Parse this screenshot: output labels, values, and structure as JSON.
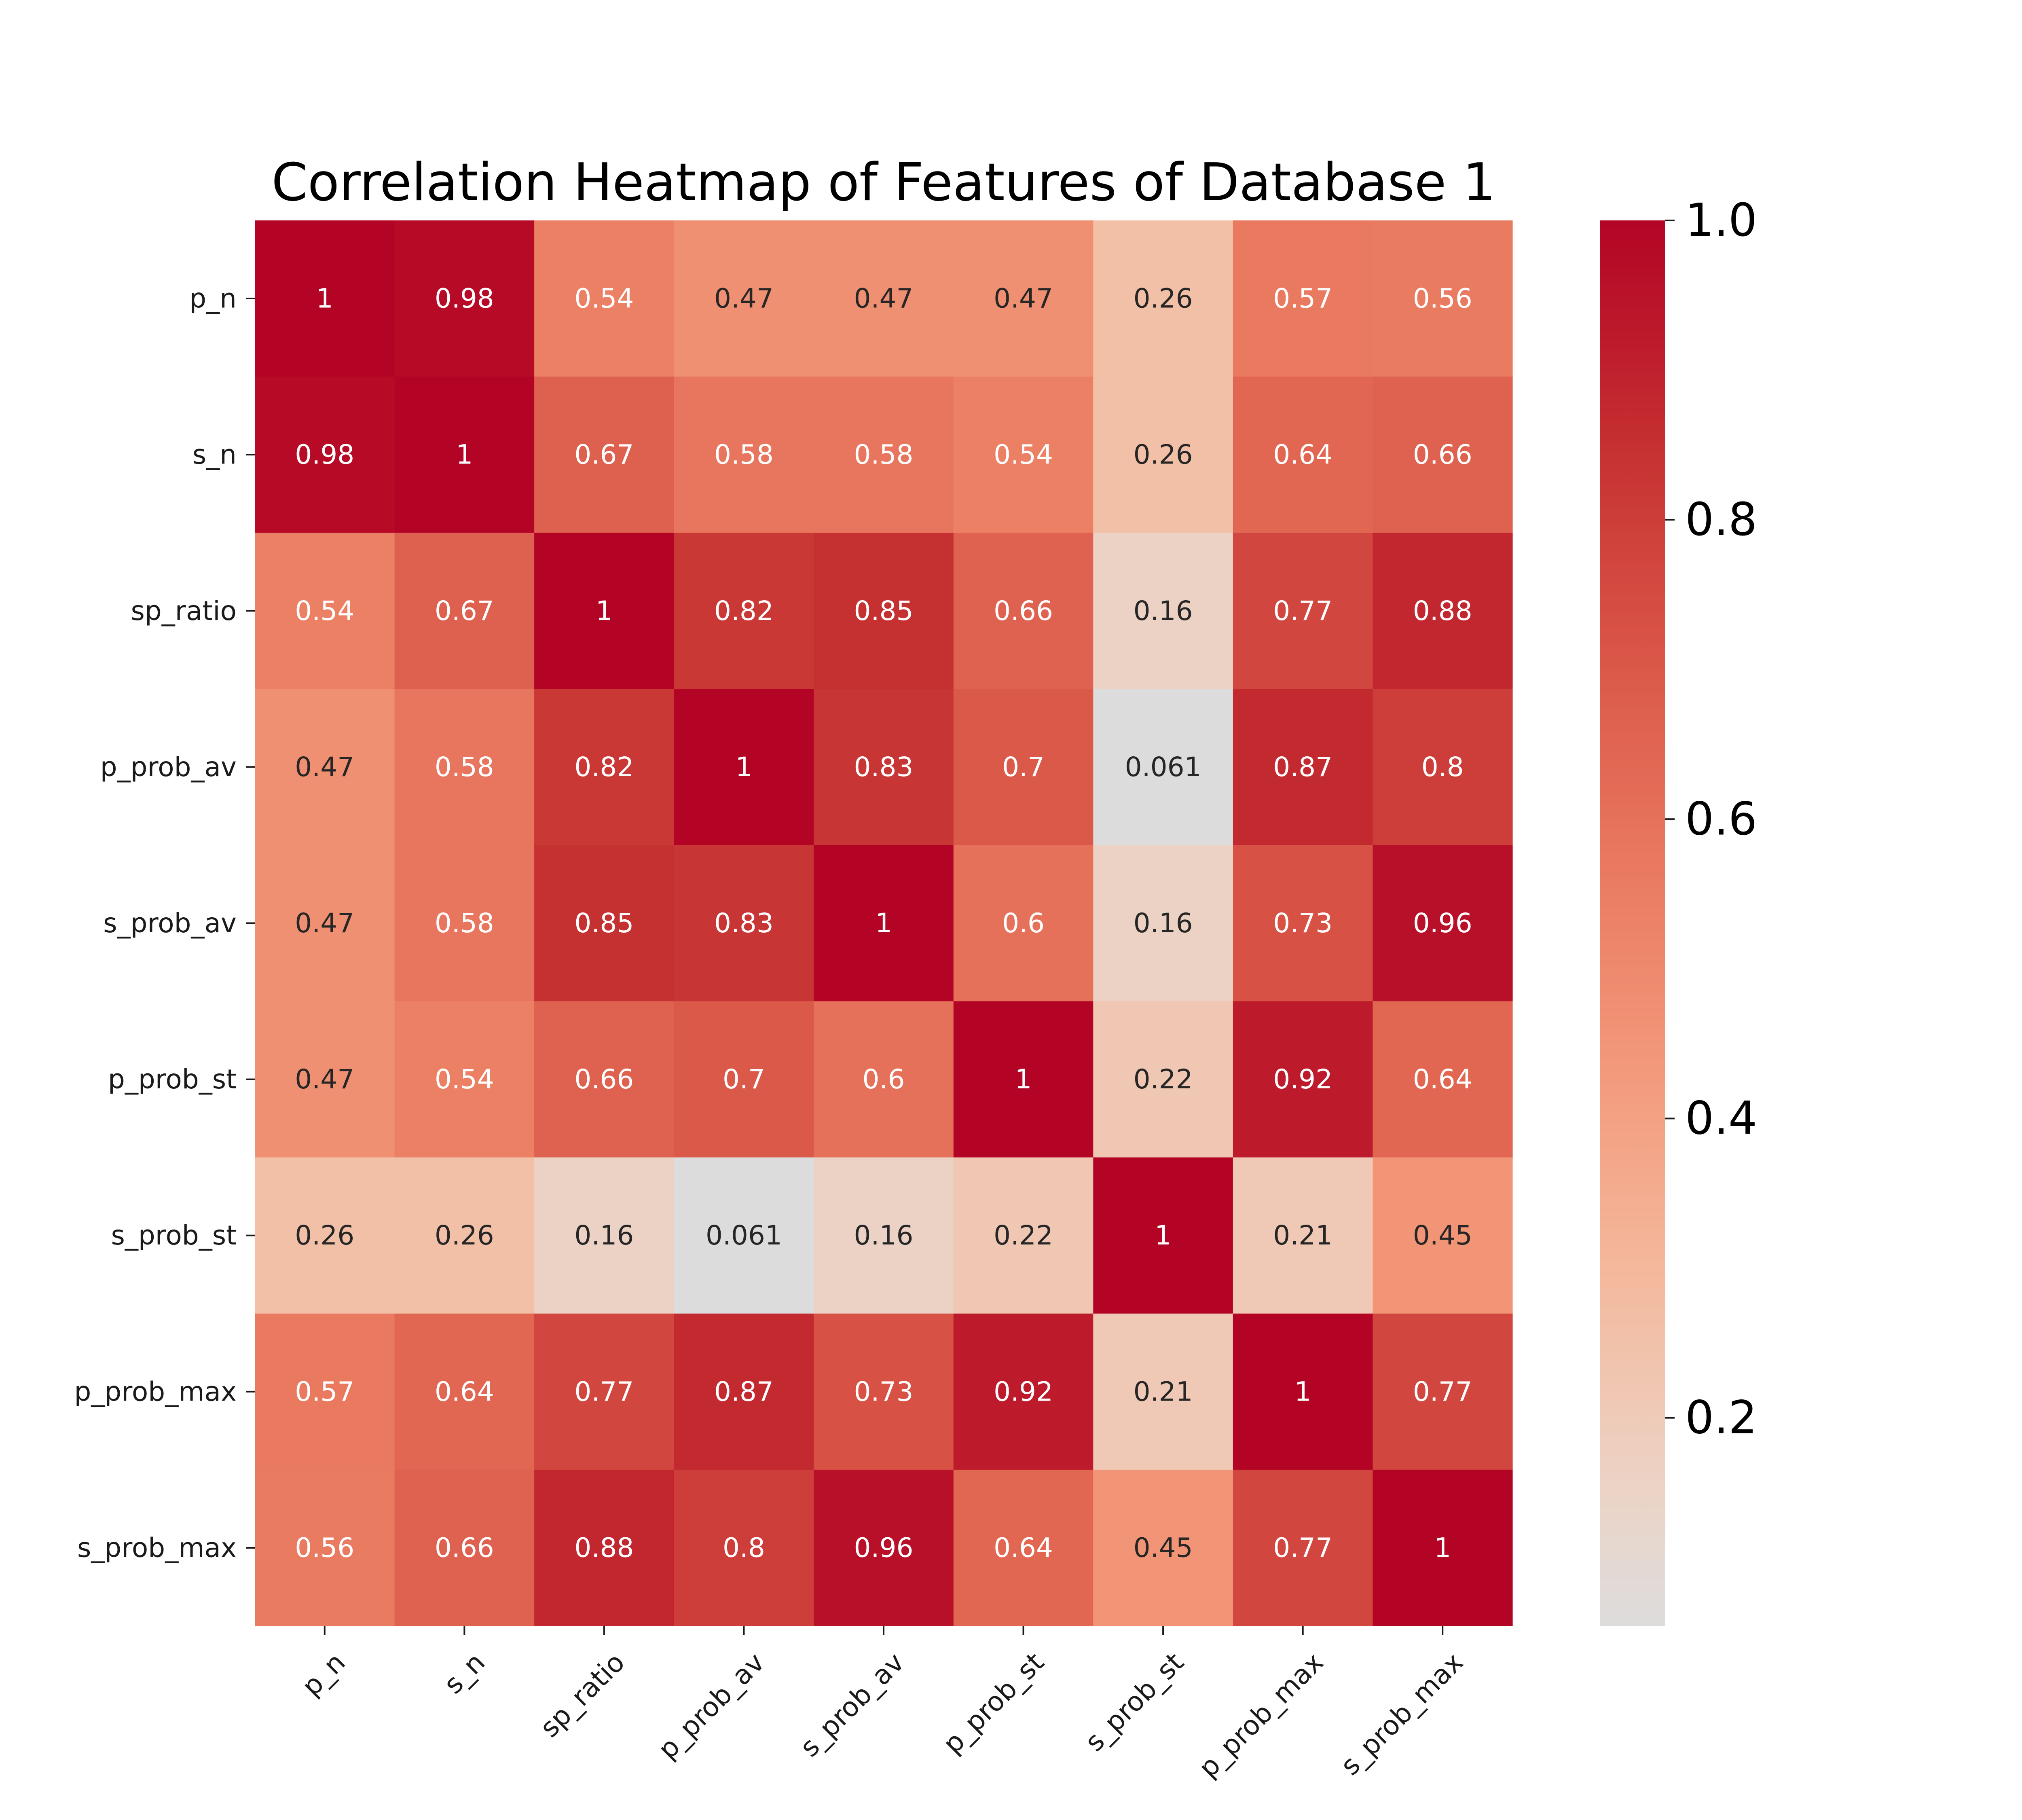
{
  "chart_data": {
    "type": "heatmap",
    "title": "Correlation Heatmap of Features of Database 1",
    "xlabel": "",
    "ylabel": "",
    "labels": [
      "p_n",
      "s_n",
      "sp_ratio",
      "p_prob_av",
      "s_prob_av",
      "p_prob_st",
      "s_prob_st",
      "p_prob_max",
      "s_prob_max"
    ],
    "matrix": [
      [
        1,
        0.98,
        0.54,
        0.47,
        0.47,
        0.47,
        0.26,
        0.57,
        0.56
      ],
      [
        0.98,
        1,
        0.67,
        0.58,
        0.58,
        0.54,
        0.26,
        0.64,
        0.66
      ],
      [
        0.54,
        0.67,
        1,
        0.82,
        0.85,
        0.66,
        0.16,
        0.77,
        0.88
      ],
      [
        0.47,
        0.58,
        0.82,
        1,
        0.83,
        0.7,
        0.061,
        0.87,
        0.8
      ],
      [
        0.47,
        0.58,
        0.85,
        0.83,
        1,
        0.6,
        0.16,
        0.73,
        0.96
      ],
      [
        0.47,
        0.54,
        0.66,
        0.7,
        0.6,
        1,
        0.22,
        0.92,
        0.64
      ],
      [
        0.26,
        0.26,
        0.16,
        0.061,
        0.16,
        0.22,
        1,
        0.21,
        0.45
      ],
      [
        0.57,
        0.64,
        0.77,
        0.87,
        0.73,
        0.92,
        0.21,
        1,
        0.77
      ],
      [
        0.56,
        0.66,
        0.88,
        0.8,
        0.96,
        0.64,
        0.45,
        0.77,
        1
      ]
    ],
    "colormap": "coolwarm",
    "vmin": 0.061,
    "vmax": 1.0,
    "colorbar": {
      "ticks": [
        0.2,
        0.4,
        0.6,
        0.8,
        1.0
      ],
      "tick_labels": [
        "0.2",
        "0.4",
        "0.6",
        "0.8",
        "1.0"
      ]
    },
    "x_tick_rotation": 45,
    "legend": "right (colorbar)",
    "grid": false
  }
}
